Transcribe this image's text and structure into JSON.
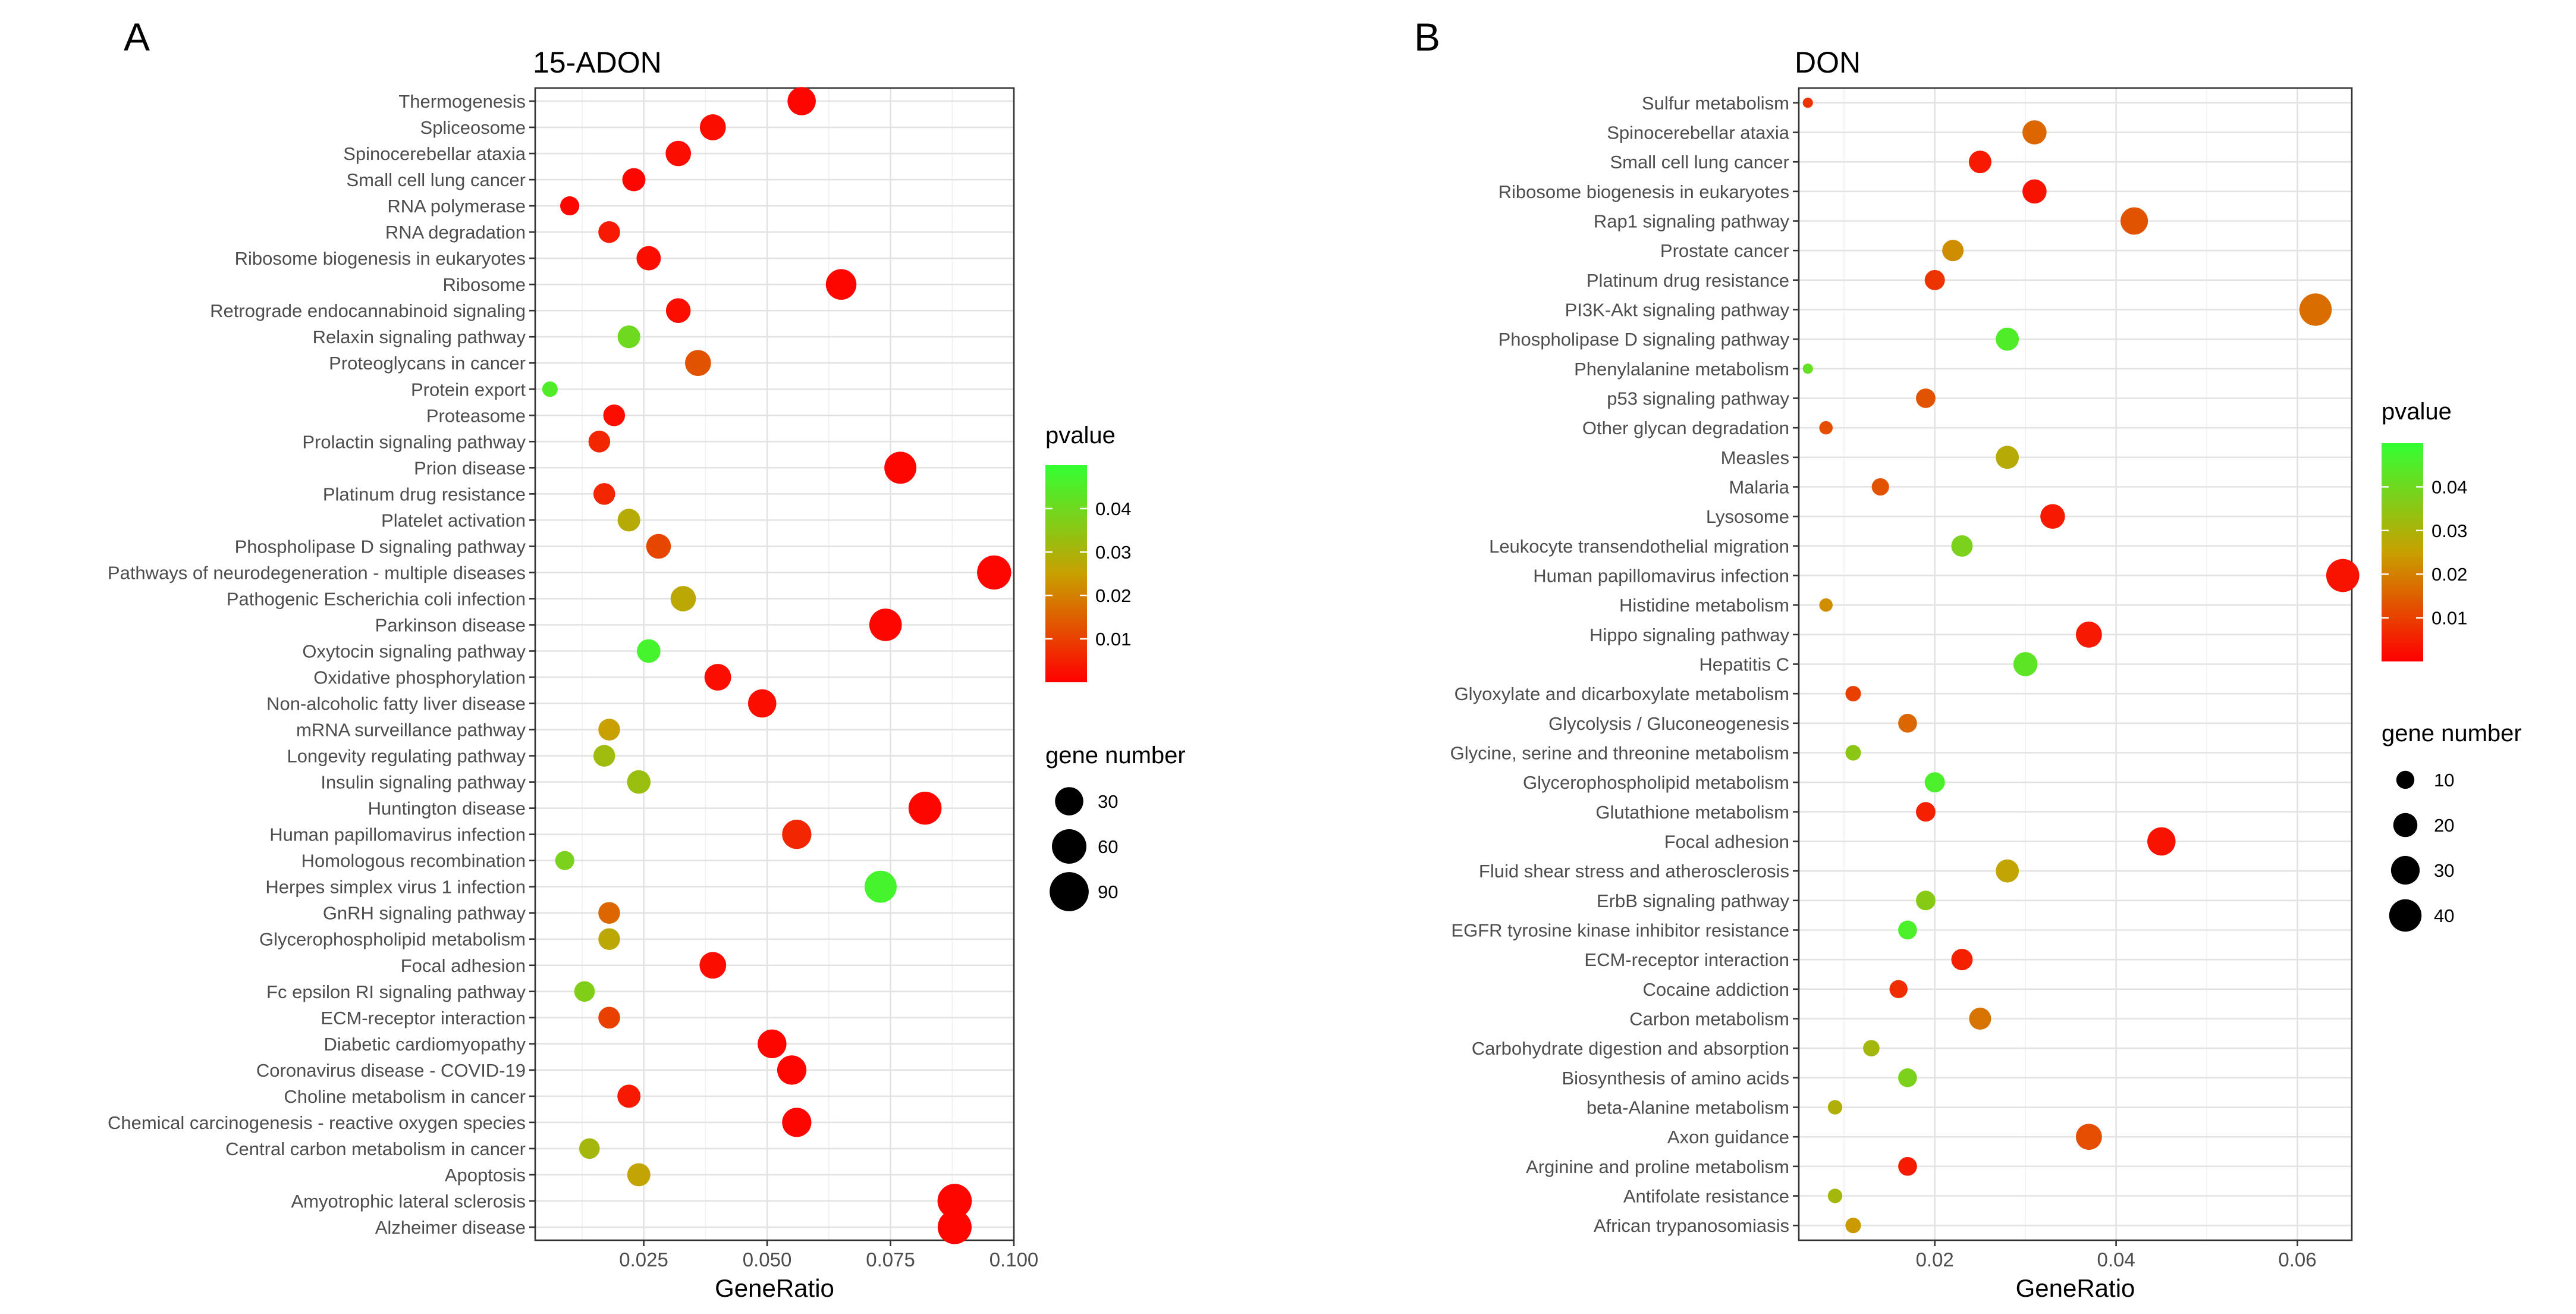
{
  "chart_data": [
    {
      "panel_label": "A",
      "type": "scatter",
      "title": "15-ADON",
      "xlabel": "GeneRatio",
      "xlim": [
        0.003,
        0.1
      ],
      "xticks": [
        0.025,
        0.05,
        0.075,
        0.1
      ],
      "xtick_labels": [
        "0.025",
        "0.050",
        "0.075",
        "0.100"
      ],
      "color_legend": {
        "title": "pvalue",
        "range": [
          0.0,
          0.05
        ],
        "ticks": [
          0.01,
          0.02,
          0.03,
          0.04
        ],
        "tick_labels": [
          "0.01",
          "0.02",
          "0.03",
          "0.04"
        ],
        "low_color": "#ff0000",
        "mid_color": "#c8a000",
        "high_color": "#33ff33"
      },
      "size_legend": {
        "title": "gene number",
        "values": [
          30,
          60,
          90
        ],
        "labels": [
          "30",
          "60",
          "90"
        ],
        "size_range": [
          5,
          100
        ]
      },
      "categories": [
        "Thermogenesis",
        "Spliceosome",
        "Spinocerebellar ataxia",
        "Small cell lung cancer",
        "RNA polymerase",
        "RNA degradation",
        "Ribosome biogenesis in eukaryotes",
        "Ribosome",
        "Retrograde endocannabinoid signaling",
        "Relaxin signaling pathway",
        "Proteoglycans in cancer",
        "Protein export",
        "Proteasome",
        "Prolactin signaling pathway",
        "Prion disease",
        "Platinum drug resistance",
        "Platelet activation",
        "Phospholipase D signaling pathway",
        "Pathways of neurodegeneration - multiple diseases",
        "Pathogenic Escherichia coli infection",
        "Parkinson disease",
        "Oxytocin signaling pathway",
        "Oxidative phosphorylation",
        "Non-alcoholic fatty liver disease",
        "mRNA surveillance pathway",
        "Longevity regulating pathway",
        "Insulin signaling pathway",
        "Huntington disease",
        "Human papillomavirus infection",
        "Homologous recombination",
        "Herpes simplex virus 1 infection",
        "GnRH signaling pathway",
        "Glycerophospholipid metabolism",
        "Focal adhesion",
        "Fc epsilon RI signaling pathway",
        "ECM-receptor interaction",
        "Diabetic cardiomyopathy",
        "Coronavirus disease - COVID-19",
        "Choline metabolism in cancer",
        "Chemical carcinogenesis - reactive oxygen species",
        "Central carbon metabolism in cancer",
        "Apoptosis",
        "Amyotrophic lateral sclerosis",
        "Alzheimer disease"
      ],
      "gene_ratio": [
        0.057,
        0.039,
        0.032,
        0.023,
        0.01,
        0.018,
        0.026,
        0.065,
        0.032,
        0.022,
        0.036,
        0.006,
        0.019,
        0.016,
        0.077,
        0.017,
        0.022,
        0.028,
        0.096,
        0.033,
        0.074,
        0.026,
        0.04,
        0.049,
        0.018,
        0.017,
        0.024,
        0.082,
        0.056,
        0.009,
        0.073,
        0.018,
        0.018,
        0.039,
        0.013,
        0.018,
        0.051,
        0.055,
        0.022,
        0.056,
        0.014,
        0.024,
        0.088,
        0.088
      ],
      "pvalue": [
        0.001,
        0.002,
        0.002,
        0.001,
        0.001,
        0.004,
        0.002,
        0.001,
        0.002,
        0.04,
        0.013,
        0.045,
        0.002,
        0.006,
        0.001,
        0.006,
        0.028,
        0.011,
        0.001,
        0.027,
        0.001,
        0.047,
        0.002,
        0.002,
        0.025,
        0.032,
        0.033,
        0.001,
        0.006,
        0.038,
        0.047,
        0.016,
        0.027,
        0.002,
        0.037,
        0.01,
        0.001,
        0.001,
        0.004,
        0.001,
        0.031,
        0.026,
        0.001,
        0.001
      ],
      "gene_number": [
        30,
        22,
        20,
        14,
        7,
        11,
        17,
        40,
        18,
        13,
        22,
        4,
        11,
        11,
        47,
        11,
        13,
        18,
        58,
        20,
        49,
        15,
        24,
        30,
        11,
        11,
        15,
        52,
        34,
        7,
        47,
        11,
        11,
        24,
        9,
        11,
        32,
        34,
        14,
        34,
        9,
        14,
        59,
        57
      ]
    },
    {
      "panel_label": "B",
      "type": "scatter",
      "title": "DON",
      "xlabel": "GeneRatio",
      "xlim": [
        0.005,
        0.066
      ],
      "xticks": [
        0.02,
        0.04,
        0.06
      ],
      "xtick_labels": [
        "0.02",
        "0.04",
        "0.06"
      ],
      "color_legend": {
        "title": "pvalue",
        "range": [
          0.0,
          0.05
        ],
        "ticks": [
          0.01,
          0.02,
          0.03,
          0.04
        ],
        "tick_labels": [
          "0.01",
          "0.02",
          "0.03",
          "0.04"
        ],
        "low_color": "#ff0000",
        "mid_color": "#c8a000",
        "high_color": "#33ff33"
      },
      "size_legend": {
        "title": "gene number",
        "values": [
          10,
          20,
          30,
          40
        ],
        "labels": [
          "10",
          "20",
          "30",
          "40"
        ],
        "size_range": [
          2,
          50
        ]
      },
      "categories": [
        "Sulfur metabolism",
        "Spinocerebellar ataxia",
        "Small cell lung cancer",
        "Ribosome biogenesis in eukaryotes",
        "Rap1 signaling pathway",
        "Prostate cancer",
        "Platinum drug resistance",
        "PI3K-Akt signaling pathway",
        "Phospholipase D signaling pathway",
        "Phenylalanine metabolism",
        "p53 signaling pathway",
        "Other glycan degradation",
        "Measles",
        "Malaria",
        "Lysosome",
        "Leukocyte transendothelial migration",
        "Human papillomavirus infection",
        "Histidine metabolism",
        "Hippo signaling pathway",
        "Hepatitis C",
        "Glyoxylate and dicarboxylate metabolism",
        "Glycolysis / Gluconeogenesis",
        "Glycine, serine and threonine metabolism",
        "Glycerophospholipid metabolism",
        "Glutathione metabolism",
        "Focal adhesion",
        "Fluid shear stress and atherosclerosis",
        "ErbB signaling pathway",
        "EGFR tyrosine kinase inhibitor resistance",
        "ECM-receptor interaction",
        "Cocaine addiction",
        "Carbon metabolism",
        "Carbohydrate digestion and absorption",
        "Biosynthesis of amino acids",
        "beta-Alanine metabolism",
        "Axon guidance",
        "Arginine and proline metabolism",
        "Antifolate resistance",
        "African trypanosomiasis"
      ],
      "gene_ratio": [
        0.006,
        0.031,
        0.025,
        0.031,
        0.042,
        0.022,
        0.02,
        0.062,
        0.028,
        0.006,
        0.019,
        0.008,
        0.028,
        0.014,
        0.033,
        0.023,
        0.065,
        0.008,
        0.037,
        0.03,
        0.011,
        0.017,
        0.011,
        0.02,
        0.019,
        0.045,
        0.028,
        0.019,
        0.017,
        0.023,
        0.016,
        0.025,
        0.013,
        0.017,
        0.009,
        0.037,
        0.017,
        0.009,
        0.011
      ],
      "pvalue": [
        0.008,
        0.016,
        0.004,
        0.003,
        0.013,
        0.022,
        0.008,
        0.017,
        0.045,
        0.042,
        0.013,
        0.012,
        0.028,
        0.013,
        0.004,
        0.038,
        0.003,
        0.022,
        0.004,
        0.043,
        0.01,
        0.016,
        0.035,
        0.046,
        0.005,
        0.003,
        0.026,
        0.036,
        0.046,
        0.005,
        0.007,
        0.018,
        0.031,
        0.038,
        0.029,
        0.012,
        0.004,
        0.031,
        0.024
      ],
      "gene_number": [
        3,
        20,
        17,
        20,
        27,
        15,
        13,
        40,
        18,
        3,
        12,
        5,
        18,
        9,
        21,
        15,
        42,
        5,
        24,
        20,
        7,
        11,
        7,
        13,
        12,
        29,
        18,
        12,
        11,
        15,
        10,
        16,
        8,
        11,
        6,
        24,
        11,
        6,
        7
      ]
    }
  ]
}
